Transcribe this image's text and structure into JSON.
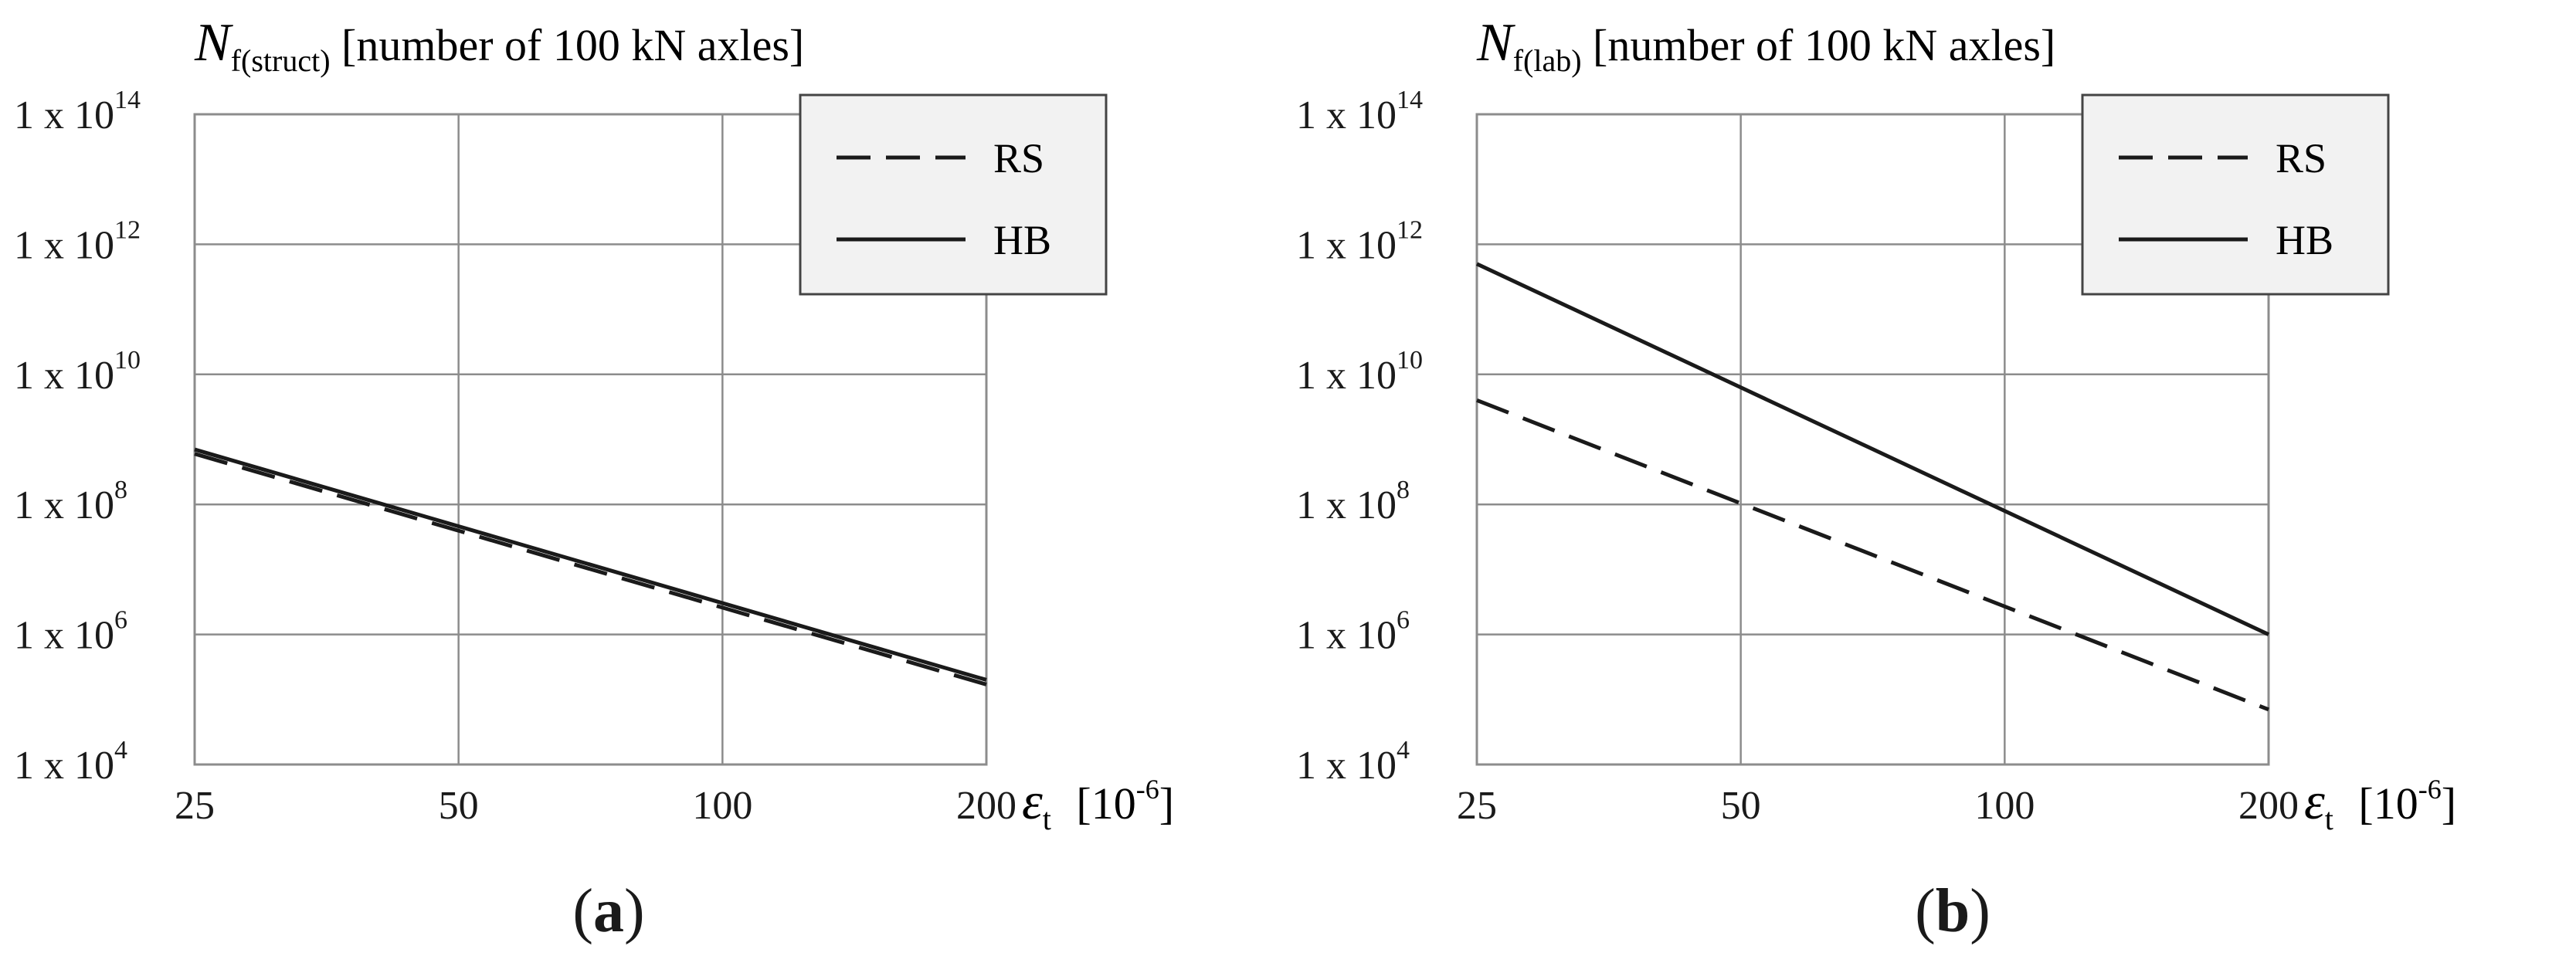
{
  "chart_data": [
    {
      "panel": "a",
      "type": "line",
      "title": "N",
      "title_sub": "f(struct)",
      "title_rest": " [number of 100 kN axles]",
      "xlabel": "ε",
      "xlabel_sub": "t",
      "xlabel_unit": "[10",
      "xlabel_unit_exp": "-6",
      "xlabel_unit_end": "]",
      "x_scale": "log",
      "y_scale": "log",
      "xlim": [
        25,
        200
      ],
      "ylim": [
        10000,
        100000000000000
      ],
      "xticks": [
        25,
        50,
        100,
        200
      ],
      "x_tick_labels": [
        "25",
        "50",
        "100",
        "200"
      ],
      "yticks": [
        10000,
        1000000,
        100000000,
        10000000000,
        1000000000000,
        100000000000000
      ],
      "y_tick_labels": [
        {
          "base": "1 x 10",
          "exp": "4"
        },
        {
          "base": "1 x 10",
          "exp": "6"
        },
        {
          "base": "1 x 10",
          "exp": "8"
        },
        {
          "base": "1 x 10",
          "exp": "10"
        },
        {
          "base": "1 x 10",
          "exp": "12"
        },
        {
          "base": "1 x 10",
          "exp": "14"
        }
      ],
      "grid": true,
      "legend_position": "top-right",
      "series": [
        {
          "name": "RS",
          "style": "dashed",
          "x": [
            25,
            200
          ],
          "y": [
            600000000,
            170000
          ]
        },
        {
          "name": "HB",
          "style": "solid",
          "x": [
            25,
            200
          ],
          "y": [
            700000000,
            200000
          ]
        }
      ],
      "caption_label": "a"
    },
    {
      "panel": "b",
      "type": "line",
      "title": "N",
      "title_sub": "f(lab)",
      "title_rest": " [number of 100 kN axles]",
      "xlabel": "ε",
      "xlabel_sub": "t",
      "xlabel_unit": "[10",
      "xlabel_unit_exp": "-6",
      "xlabel_unit_end": "]",
      "x_scale": "log",
      "y_scale": "log",
      "xlim": [
        25,
        200
      ],
      "ylim": [
        10000,
        100000000000000
      ],
      "xticks": [
        25,
        50,
        100,
        200
      ],
      "x_tick_labels": [
        "25",
        "50",
        "100",
        "200"
      ],
      "yticks": [
        10000,
        1000000,
        100000000,
        10000000000,
        1000000000000,
        100000000000000
      ],
      "y_tick_labels": [
        {
          "base": "1 x 10",
          "exp": "4"
        },
        {
          "base": "1 x 10",
          "exp": "6"
        },
        {
          "base": "1 x 10",
          "exp": "8"
        },
        {
          "base": "1 x 10",
          "exp": "10"
        },
        {
          "base": "1 x 10",
          "exp": "12"
        },
        {
          "base": "1 x 10",
          "exp": "14"
        }
      ],
      "grid": true,
      "legend_position": "top-right",
      "series": [
        {
          "name": "RS",
          "style": "dashed",
          "x": [
            25,
            200
          ],
          "y": [
            4000000000,
            70000
          ]
        },
        {
          "name": "HB",
          "style": "solid",
          "x": [
            25,
            200
          ],
          "y": [
            500000000000,
            1000000
          ]
        }
      ],
      "caption_label": "b"
    }
  ],
  "colors": {
    "line": "#1a1a1a",
    "grid": "#8c8c8c",
    "legend_bg": "#f2f2f2"
  }
}
